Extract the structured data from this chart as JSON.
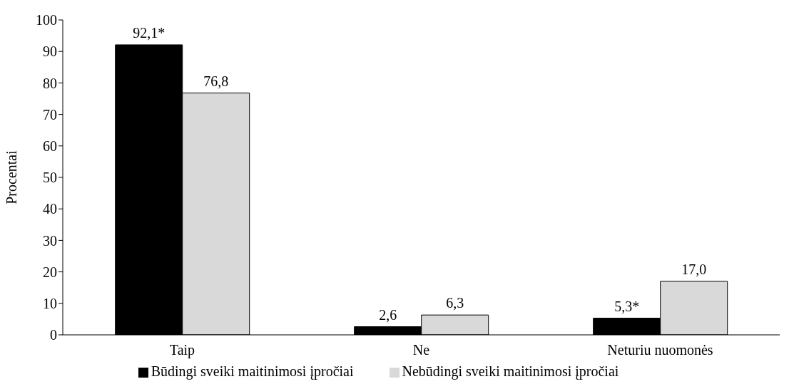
{
  "chart_data": {
    "type": "bar",
    "ylabel": "Procentai",
    "categories": [
      "Taip",
      "Ne",
      "Neturiu nuomonės"
    ],
    "series": [
      {
        "name": "Būdingi sveiki maitinimosi įpročiai",
        "color": "#000000",
        "values": [
          92.1,
          2.6,
          5.3
        ],
        "value_labels": [
          "92,1*",
          "2,6",
          "5,3*"
        ]
      },
      {
        "name": "Nebūdingi sveiki maitinimosi įpročiai",
        "color": "#d9d9d9",
        "values": [
          76.8,
          6.3,
          17.0
        ],
        "value_labels": [
          "76,8",
          "6,3",
          "17,0"
        ]
      }
    ],
    "ylim": [
      0,
      100
    ],
    "yticks": [
      0,
      10,
      20,
      30,
      40,
      50,
      60,
      70,
      80,
      90,
      100
    ],
    "grid": false,
    "legend": "bottom"
  }
}
